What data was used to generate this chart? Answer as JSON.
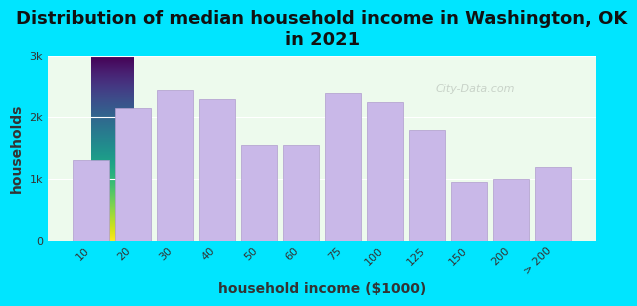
{
  "title": "Distribution of median household income in Washington, OK\nin 2021",
  "xlabel": "household income ($1000)",
  "ylabel": "households",
  "categories": [
    "10",
    "20",
    "30",
    "40",
    "50",
    "60",
    "75",
    "100",
    "125",
    "150",
    "200",
    "> 200"
  ],
  "values": [
    1300,
    2150,
    2450,
    2300,
    1550,
    1550,
    2400,
    2250,
    1800,
    950,
    1000,
    1200
  ],
  "bar_color": "#c9b8e8",
  "bar_edge_color": "#b09ccc",
  "background_color": "#00e5ff",
  "plot_bg_start": "#e8f5e9",
  "plot_bg_end": "#f5fff5",
  "title_fontsize": 13,
  "axis_label_fontsize": 10,
  "tick_fontsize": 8,
  "ylim": [
    0,
    3000
  ],
  "yticks": [
    0,
    1000,
    2000,
    3000
  ],
  "ytick_labels": [
    "0",
    "1k",
    "2k",
    "3k"
  ],
  "watermark": "City-Data.com"
}
